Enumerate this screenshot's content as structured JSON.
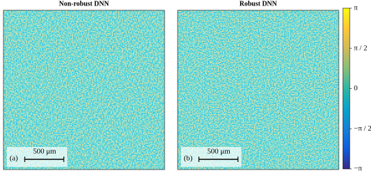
{
  "chart_data": [
    {
      "type": "image",
      "title": "Non-robust DNN",
      "panel_label": "(a)",
      "scale_bar": "500 μm"
    },
    {
      "type": "image",
      "title": "Robust DNN",
      "panel_label": "(b)",
      "scale_bar": "500 μm"
    }
  ],
  "colorbar": {
    "lim": [
      -3.1416,
      3.1416
    ],
    "ticks": [
      {
        "value": 3.1416,
        "label": "π"
      },
      {
        "value": 1.5708,
        "label": "π / 2"
      },
      0,
      {
        "value": -1.5708,
        "label": "−π / 2"
      },
      {
        "value": -3.1416,
        "label": "−π"
      }
    ]
  }
}
